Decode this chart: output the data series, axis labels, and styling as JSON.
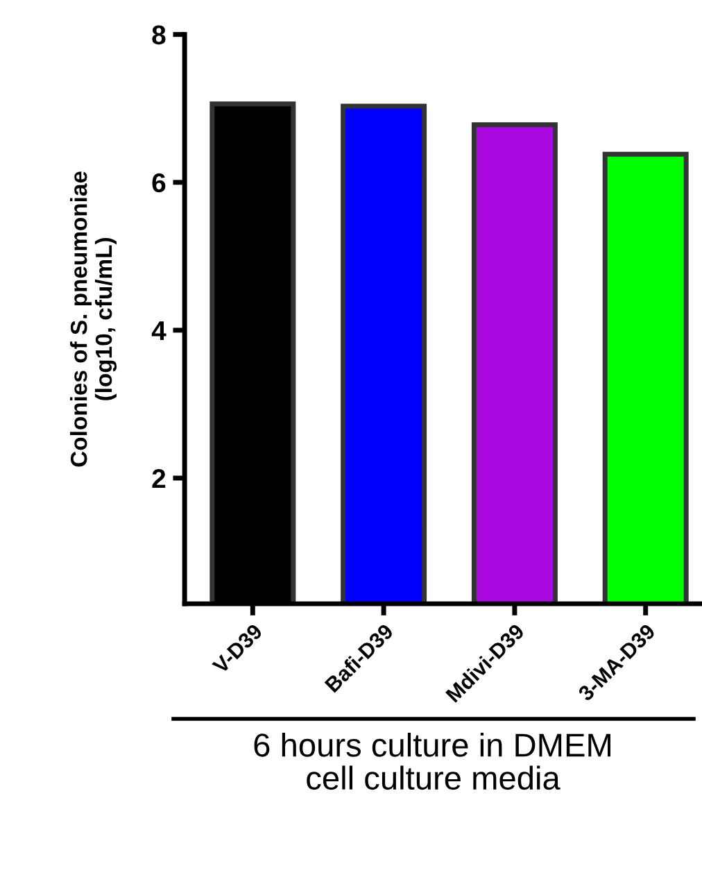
{
  "chart_data": {
    "type": "bar",
    "categories": [
      "V-D39",
      "Bafi-D39",
      "Mdivi-D39",
      "3-MA-D39"
    ],
    "values": [
      7.06,
      7.03,
      6.78,
      6.38
    ],
    "colors": [
      "#000000",
      "#0000ff",
      "#aa0ae0",
      "#00ff00"
    ],
    "ylabel": "Colonies of S. pneumoniae\n(log10, cfu/mL)",
    "xlabel": "6 hours culture in DMEM\ncell culture media",
    "ylim": [
      0.3,
      8
    ],
    "yticks": [
      2,
      4,
      6,
      8
    ],
    "grid": false,
    "legend": false
  }
}
